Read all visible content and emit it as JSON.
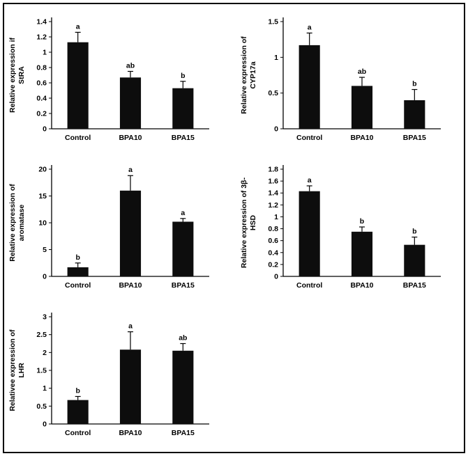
{
  "figure": {
    "background": "#ffffff",
    "border_color": "#000000",
    "bar_color": "#0d0d0d"
  },
  "chart_data": [
    {
      "id": "stra",
      "type": "bar",
      "categories": [
        "Control",
        "BPA10",
        "BPA15"
      ],
      "values": [
        1.13,
        0.67,
        0.53
      ],
      "errors": [
        0.13,
        0.08,
        0.09
      ],
      "sig_labels": [
        "a",
        "ab",
        "b"
      ],
      "ylabel": "Relative expression if StRA",
      "ylabel_lines": [
        "Relative expression if",
        "StRA"
      ],
      "xlabel": "",
      "ylim": [
        0,
        1.4
      ],
      "yticks": [
        0,
        0.2,
        0.4,
        0.6,
        0.8,
        1,
        1.2,
        1.4
      ],
      "ytick_labels": [
        "0",
        "0.2",
        "0.4",
        "0.6",
        "0.8",
        "1",
        "1.2",
        "1.4"
      ],
      "grid": false,
      "legend": "none",
      "bar_color": "#0d0d0d"
    },
    {
      "id": "cyp17a",
      "type": "bar",
      "categories": [
        "Control",
        "BPA10",
        "BPA15"
      ],
      "values": [
        1.17,
        0.6,
        0.4
      ],
      "errors": [
        0.17,
        0.12,
        0.15
      ],
      "sig_labels": [
        "a",
        "ab",
        "b"
      ],
      "ylabel": "Relative expression of CYP17a",
      "ylabel_lines": [
        "Relative expression of",
        "CYP17a"
      ],
      "xlabel": "",
      "ylim": [
        0,
        1.5
      ],
      "yticks": [
        0,
        0.5,
        1,
        1.5
      ],
      "ytick_labels": [
        "0",
        "0.5",
        "1",
        "1.5"
      ],
      "grid": false,
      "legend": "none",
      "bar_color": "#0d0d0d"
    },
    {
      "id": "aromatase",
      "type": "bar",
      "categories": [
        "Control",
        "BPA10",
        "BPA15"
      ],
      "values": [
        1.7,
        16,
        10.2
      ],
      "errors": [
        0.8,
        2.8,
        0.6
      ],
      "sig_labels": [
        "b",
        "a",
        "a"
      ],
      "ylabel": "Relative expression of aromatase",
      "ylabel_lines": [
        "Relative expression of",
        "aromatase"
      ],
      "xlabel": "",
      "ylim": [
        0,
        20
      ],
      "yticks": [
        0,
        5,
        10,
        15,
        20
      ],
      "ytick_labels": [
        "0",
        "5",
        "10",
        "15",
        "20"
      ],
      "grid": false,
      "legend": "none",
      "bar_color": "#0d0d0d"
    },
    {
      "id": "3b-hsd",
      "type": "bar",
      "categories": [
        "Control",
        "BPA10",
        "BPA15"
      ],
      "values": [
        1.43,
        0.75,
        0.53
      ],
      "errors": [
        0.09,
        0.08,
        0.13
      ],
      "sig_labels": [
        "a",
        "b",
        "b"
      ],
      "ylabel": "Relative expression of 3β-HSD",
      "ylabel_lines": [
        "Relative expression of 3β-",
        "HSD"
      ],
      "xlabel": "",
      "ylim": [
        0,
        1.8
      ],
      "yticks": [
        0,
        0.2,
        0.4,
        0.6,
        0.8,
        1,
        1.2,
        1.4,
        1.6,
        1.8
      ],
      "ytick_labels": [
        "0",
        "0.2",
        "0.4",
        "0.6",
        "0.8",
        "1",
        "1.2",
        "1.4",
        "1.6",
        "1.8"
      ],
      "grid": false,
      "legend": "none",
      "bar_color": "#0d0d0d"
    },
    {
      "id": "lhr",
      "type": "bar",
      "categories": [
        "Control",
        "BPA10",
        "BPA15"
      ],
      "values": [
        0.67,
        2.08,
        2.05
      ],
      "errors": [
        0.1,
        0.5,
        0.2
      ],
      "sig_labels": [
        "b",
        "a",
        "ab"
      ],
      "ylabel": "Relativee expression of LHR",
      "ylabel_lines": [
        "Relativee expression of",
        "LHR"
      ],
      "xlabel": "",
      "ylim": [
        0,
        3
      ],
      "yticks": [
        0,
        0.5,
        1,
        1.5,
        2,
        2.5,
        3
      ],
      "ytick_labels": [
        "0",
        "0.5",
        "1",
        "1.5",
        "2",
        "2.5",
        "3"
      ],
      "grid": false,
      "legend": "none",
      "bar_color": "#0d0d0d"
    }
  ]
}
